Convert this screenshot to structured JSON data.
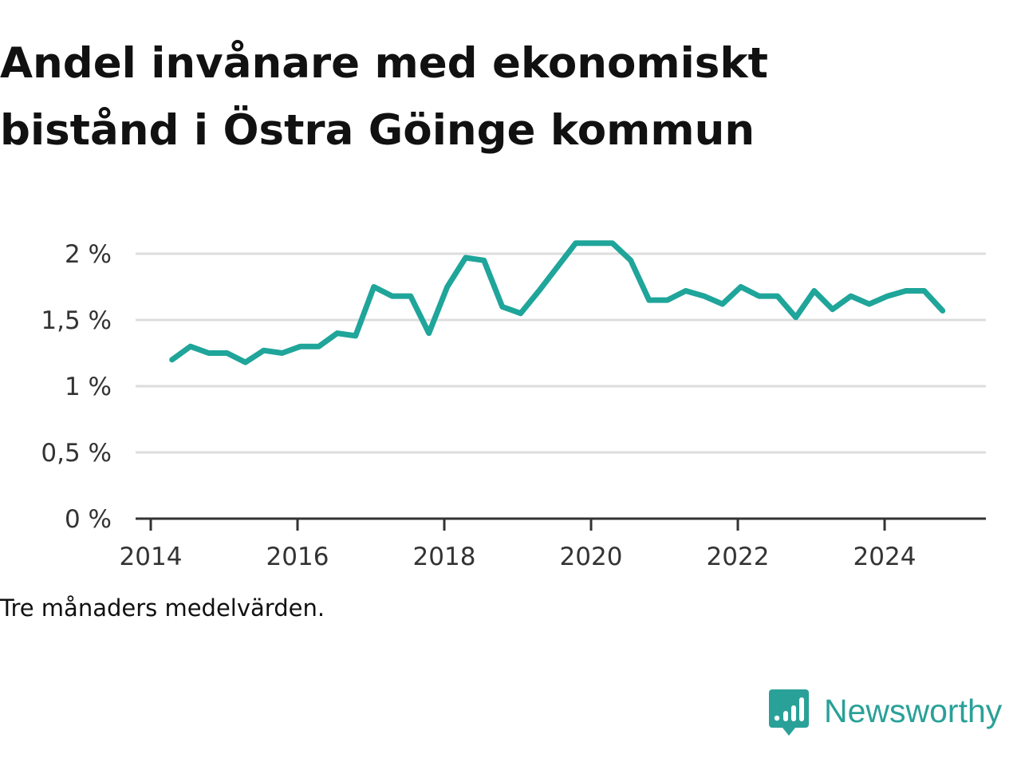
{
  "chart_data": {
    "type": "line",
    "title": "Andel invånare med ekonomiskt bistånd i Östra Göinge kommun",
    "note": "Tre månaders medelvärden.",
    "xlabel": "",
    "ylabel": "",
    "x_tick_labels": [
      "2014",
      "2016",
      "2018",
      "2020",
      "2022",
      "2024"
    ],
    "x_ticks": [
      2014,
      2016,
      2018,
      2020,
      2022,
      2024
    ],
    "y_tick_labels": [
      "0 %",
      "0,5 %",
      "1 %",
      "1,5 %",
      "2 %"
    ],
    "y_ticks": [
      0,
      0.5,
      1,
      1.5,
      2
    ],
    "xlim": [
      2013.8,
      2025.4
    ],
    "ylim": [
      0,
      2
    ],
    "grid": true,
    "line_color": "#1fa59a",
    "series": [
      {
        "x": [
          2014.29,
          2014.54,
          2014.79,
          2015.04,
          2015.29,
          2015.54,
          2015.79,
          2016.04,
          2016.29,
          2016.54,
          2016.79,
          2017.04,
          2017.29,
          2017.54,
          2017.79,
          2018.04,
          2018.29,
          2018.54,
          2018.79,
          2019.04,
          2019.29,
          2019.54,
          2019.79,
          2020.04,
          2020.29,
          2020.54,
          2020.79,
          2021.04,
          2021.29,
          2021.54,
          2021.79,
          2022.04,
          2022.29,
          2022.54,
          2022.79,
          2023.04,
          2023.29,
          2023.54,
          2023.79,
          2024.04,
          2024.29,
          2024.54,
          2024.79
        ],
        "values": [
          1.2,
          1.3,
          1.25,
          1.25,
          1.18,
          1.27,
          1.25,
          1.3,
          1.3,
          1.4,
          1.38,
          1.75,
          1.68,
          1.68,
          1.4,
          1.75,
          1.97,
          1.95,
          1.6,
          1.55,
          1.72,
          1.9,
          2.08,
          2.08,
          2.08,
          1.95,
          1.65,
          1.65,
          1.72,
          1.68,
          1.62,
          1.75,
          1.68,
          1.68,
          1.52,
          1.72,
          1.58,
          1.68,
          1.62,
          1.68,
          1.72,
          1.72,
          1.57
        ]
      }
    ]
  },
  "brand": {
    "name": "Newsworthy",
    "icon": "newsworthy-logo-icon",
    "color": "#2aa198"
  }
}
